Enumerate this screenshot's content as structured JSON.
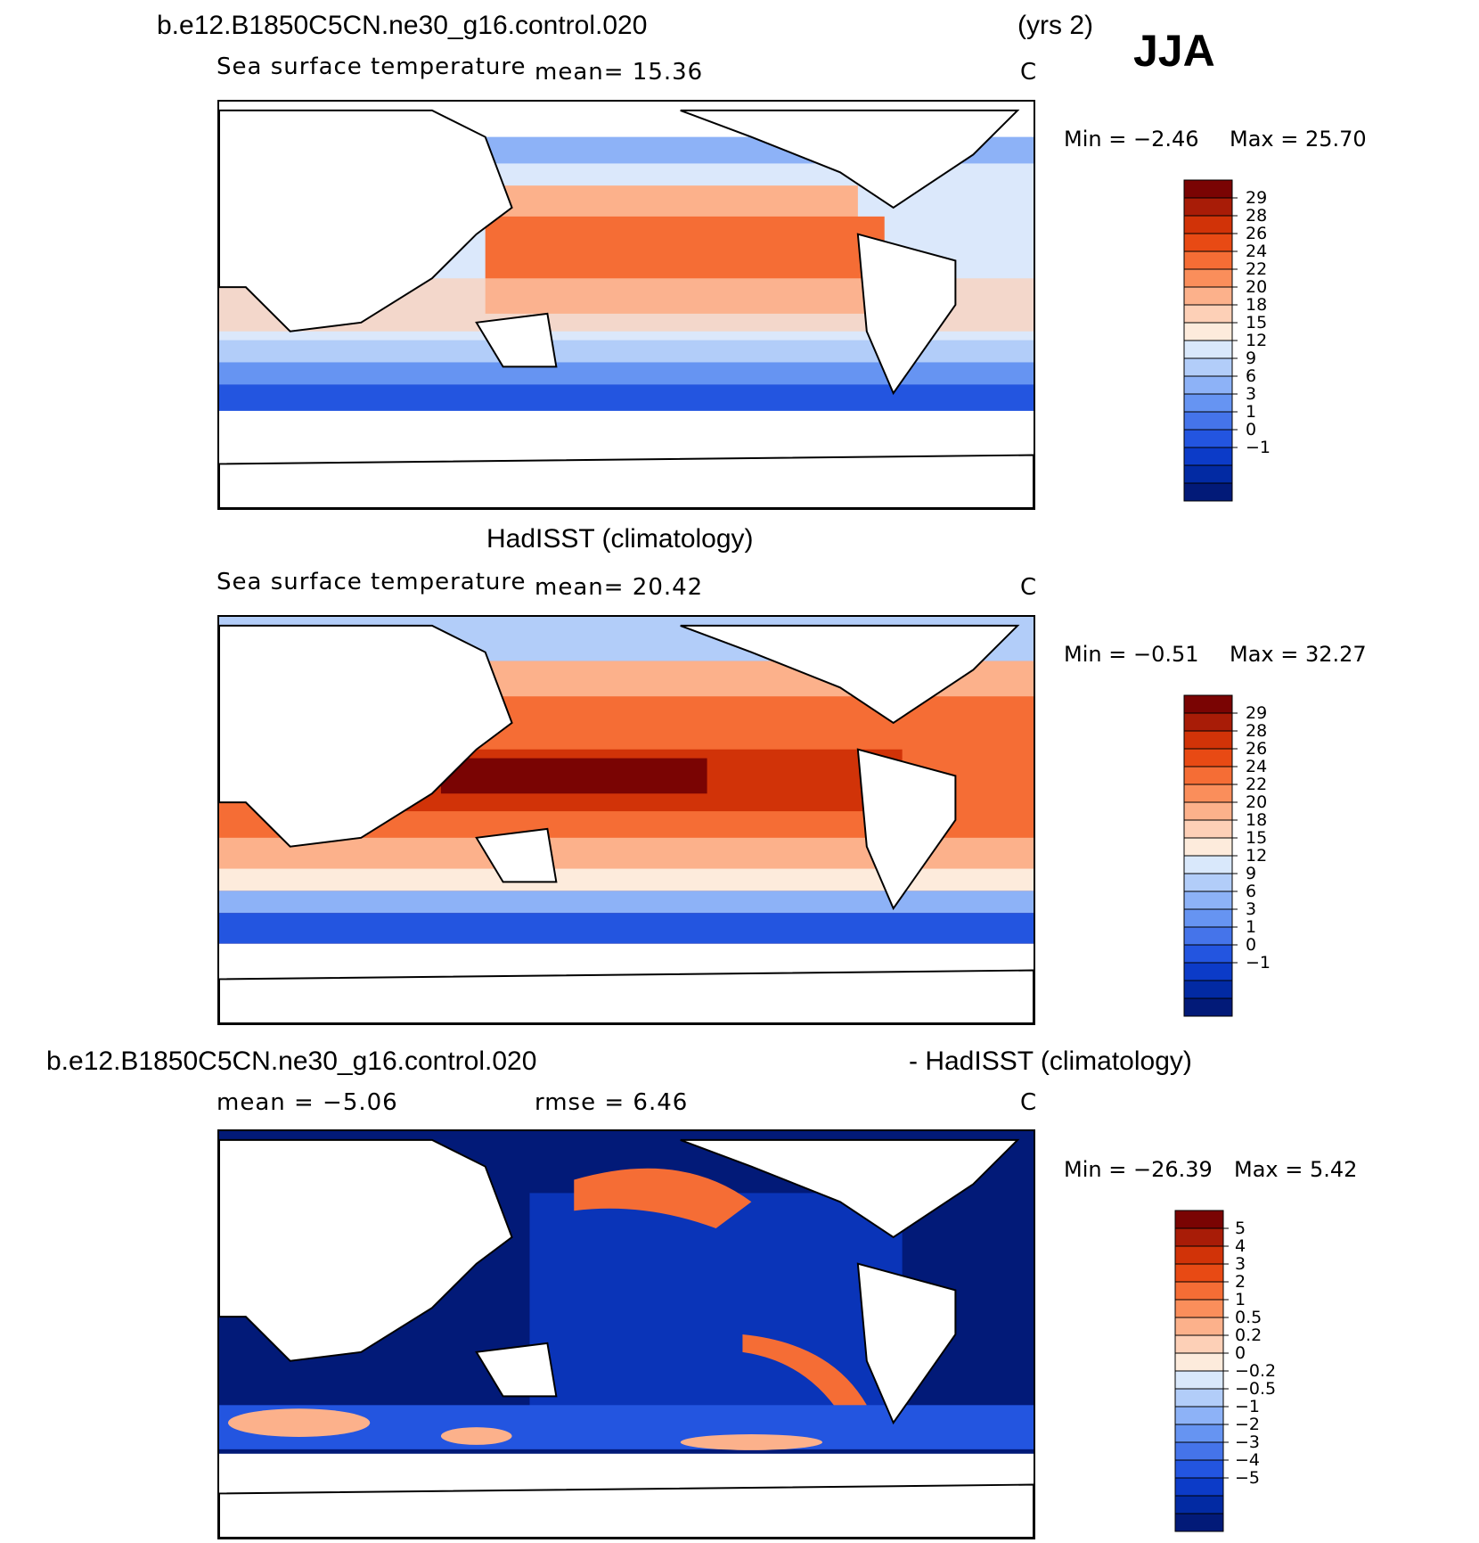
{
  "header": {
    "case": "b.e12.B1850C5CN.ne30_g16.control.020",
    "years": "(yrs 2)",
    "season": "JJA"
  },
  "panels": [
    {
      "id": "model",
      "title": "",
      "variable": "Sea surface temperature",
      "stat": "mean=   15.36",
      "units": "C",
      "min": "Min  =    −2.46",
      "max": "Max  =    25.70"
    },
    {
      "id": "obs",
      "title": "HadISST (climatology)",
      "variable": "Sea surface temperature",
      "stat": "mean=   20.42",
      "units": "C",
      "min": "Min  =    −0.51",
      "max": "Max  =    32.27"
    },
    {
      "id": "diff",
      "title_left": "b.e12.B1850C5CN.ne30_g16.control.020",
      "title_right": "- HadISST (climatology)",
      "stat_mean": "mean  =    −5.06",
      "stat_rmse": "rmse  =     6.46",
      "units": "C",
      "min": "Min  = −26.39",
      "max": "Max  =     5.42"
    }
  ],
  "colorbars": {
    "sst": {
      "labels": [
        "29",
        "28",
        "26",
        "24",
        "22",
        "20",
        "18",
        "15",
        "12",
        "9",
        "6",
        "3",
        "1",
        "0",
        "−1"
      ],
      "colors": [
        "#7a0403",
        "#a81c07",
        "#d13308",
        "#e84a14",
        "#f56d35",
        "#fa8e5b",
        "#fcb18b",
        "#fdd0b7",
        "#fdebdc",
        "#d9e8fb",
        "#b2cdf9",
        "#8db2f7",
        "#6694f2",
        "#4574ea",
        "#2355e0",
        "#0c3bc8",
        "#022aa3",
        "#021a78"
      ]
    },
    "diff": {
      "labels": [
        "5",
        "4",
        "3",
        "2",
        "1",
        "0.5",
        "0.2",
        "0",
        "−0.2",
        "−0.5",
        "−1",
        "−2",
        "−3",
        "−4",
        "−5"
      ],
      "colors": [
        "#7a0403",
        "#a81c07",
        "#d13308",
        "#e84a14",
        "#f56d35",
        "#fa8e5b",
        "#fcb18b",
        "#fdd0b7",
        "#fdebdc",
        "#d9e8fb",
        "#b2cdf9",
        "#8db2f7",
        "#6694f2",
        "#4574ea",
        "#2355e0",
        "#0c3bc8",
        "#022aa3",
        "#021a78"
      ]
    }
  }
}
